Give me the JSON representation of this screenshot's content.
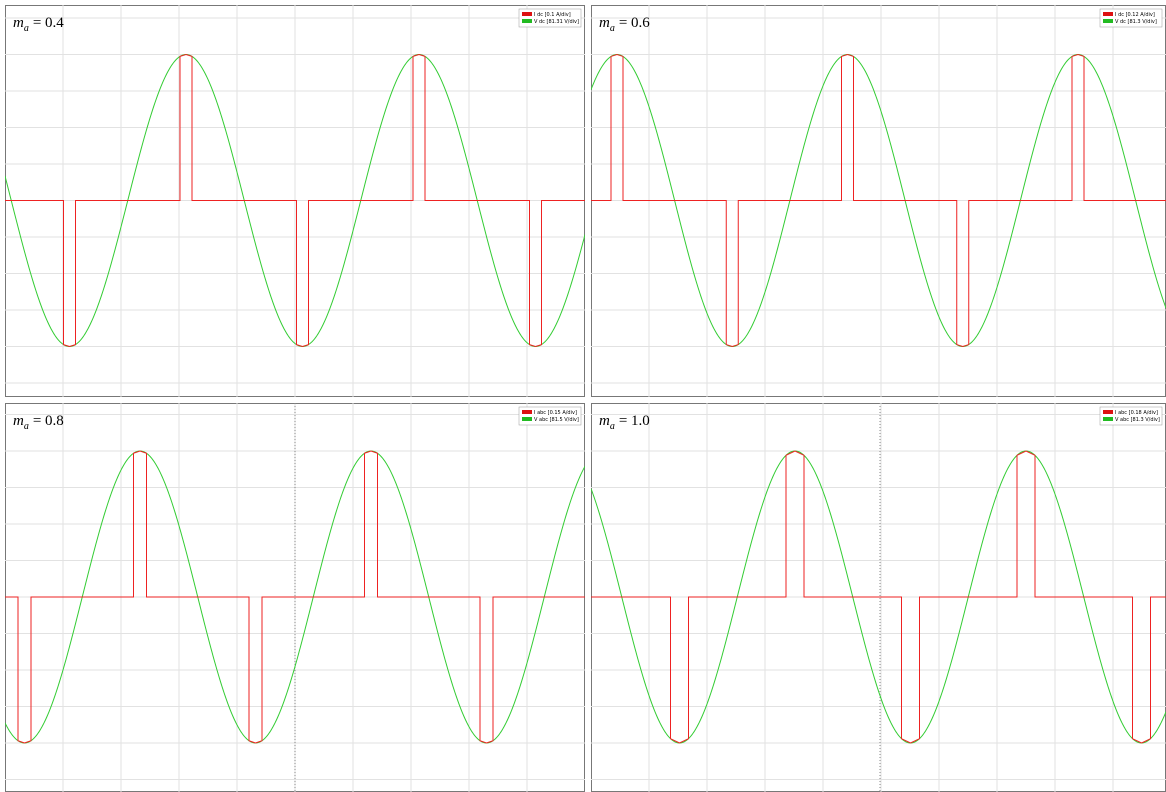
{
  "panels": [
    {
      "label": {
        "symbol": "m",
        "subscript": "a",
        "rest": "= 0.4"
      },
      "legend": [
        "I dc [0.1 A/div]",
        "V dc [81.31 V/div]"
      ]
    },
    {
      "label": {
        "symbol": "m",
        "subscript": "a",
        "rest": "= 0.6"
      },
      "legend": [
        "I dc [0.12 A/div]",
        "V dc [81.3 V/div]"
      ]
    },
    {
      "label": {
        "symbol": "m",
        "subscript": "a",
        "rest": "= 0.8"
      },
      "legend": [
        "I abc [0.15 A/div]",
        "V abc [81.5 V/div]"
      ]
    },
    {
      "label": {
        "symbol": "m",
        "subscript": "a",
        "rest": "= 1.0"
      },
      "legend": [
        "I abc [0.18 A/div]",
        "V abc [81.3 V/div]"
      ]
    }
  ]
}
